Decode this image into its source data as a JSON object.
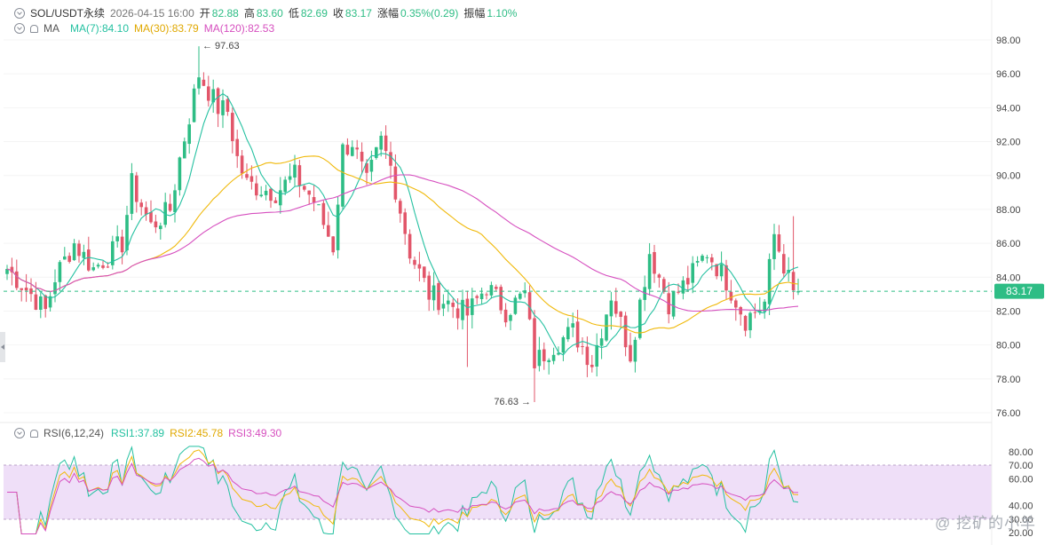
{
  "header": {
    "symbol": "SOL/USDT永续",
    "datetime": "2026-04-15 16:00",
    "open_label": "开",
    "open": "82.88",
    "high_label": "高",
    "high": "83.60",
    "low_label": "低",
    "low": "82.69",
    "close_label": "收",
    "close": "83.17",
    "change_label": "涨幅",
    "change": "0.35%(0.29)",
    "amplitude_label": "振幅",
    "amplitude": "1.10%"
  },
  "ma_legend": {
    "name": "MA",
    "ma7": "MA(7):84.10",
    "ma30": "MA(30):83.79",
    "ma120": "MA(120):82.53"
  },
  "rsi_legend": {
    "name": "RSI(6,12,24)",
    "rsi1": "RSI1:37.89",
    "rsi2": "RSI2:45.78",
    "rsi3": "RSI3:49.30"
  },
  "watermark": "@ 挖矿的小羊",
  "colors": {
    "up": "#2ebd85",
    "down": "#e2566a",
    "ma7": "#25c1a1",
    "ma30": "#f0b90b",
    "ma120": "#d64fbf",
    "rsi1": "#25c1a1",
    "rsi2": "#f0b90b",
    "rsi3": "#d64fbf",
    "last_price": "#2ebd85",
    "rsi_band": "#ecd9f7"
  },
  "chart_data": [
    {
      "type": "candlestick",
      "y_ticks": [
        "98.00",
        "96.00",
        "94.00",
        "92.00",
        "90.00",
        "88.00",
        "86.00",
        "84.00",
        "82.00",
        "80.00",
        "78.00",
        "76.00"
      ],
      "ylim": [
        75.4,
        99.4
      ],
      "last_price": 83.17,
      "last_price_label": "83.17",
      "high_marker": {
        "value": 97.63,
        "label": "97.63",
        "index": 40
      },
      "low_marker": {
        "value": 76.63,
        "label": "76.63",
        "index": 110
      },
      "anchors": [
        [
          0,
          84.5
        ],
        [
          5,
          83.0
        ],
        [
          8,
          82.0
        ],
        [
          10,
          84.0
        ],
        [
          14,
          86.0
        ],
        [
          18,
          84.5
        ],
        [
          24,
          86.0
        ],
        [
          26,
          89.5
        ],
        [
          30,
          87.0
        ],
        [
          34,
          88.0
        ],
        [
          36,
          91.0
        ],
        [
          40,
          96.0
        ],
        [
          44,
          94.0
        ],
        [
          46,
          93.8
        ],
        [
          48,
          91.0
        ],
        [
          50,
          89.5
        ],
        [
          56,
          89.0
        ],
        [
          60,
          90.0
        ],
        [
          64,
          88.5
        ],
        [
          68,
          85.8
        ],
        [
          70,
          91.5
        ],
        [
          72,
          92.0
        ],
        [
          75,
          89.5
        ],
        [
          78,
          92.0
        ],
        [
          80,
          90.5
        ],
        [
          84,
          85.5
        ],
        [
          88,
          83.0
        ],
        [
          92,
          82.5
        ],
        [
          96,
          81.8
        ],
        [
          100,
          83.5
        ],
        [
          104,
          82.0
        ],
        [
          108,
          83.0
        ],
        [
          110,
          79.0
        ],
        [
          114,
          80.0
        ],
        [
          118,
          80.8
        ],
        [
          122,
          79.0
        ],
        [
          126,
          83.0
        ],
        [
          130,
          79.5
        ],
        [
          134,
          85.5
        ],
        [
          138,
          82.5
        ],
        [
          142,
          83.8
        ],
        [
          146,
          85.5
        ],
        [
          150,
          83.8
        ],
        [
          154,
          81.5
        ],
        [
          158,
          82.5
        ],
        [
          160,
          86.5
        ],
        [
          164,
          83.0
        ]
      ],
      "ma_window_labels": [
        "MA(7)",
        "MA(30)",
        "MA(120)"
      ]
    },
    {
      "type": "line",
      "y_ticks": [
        "80.00",
        "70.00",
        "60.00",
        "40.00",
        "30.00",
        "20.00"
      ],
      "ylim": [
        18.5,
        82
      ],
      "band": [
        30,
        70
      ],
      "series_names": [
        "RSI1",
        "RSI2",
        "RSI3"
      ]
    }
  ]
}
